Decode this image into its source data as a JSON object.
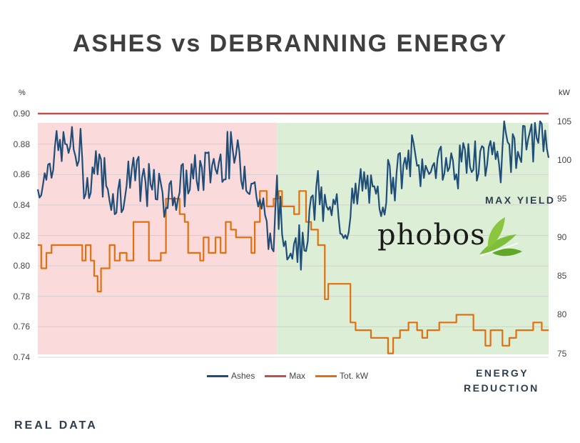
{
  "title": "ASHES vs DEBRANNING ENERGY",
  "y_left_unit": "%",
  "y_right_unit": "kW",
  "annotations": {
    "max_yield": "MAX YIELD",
    "energy_reduction_line1": "ENERGY",
    "energy_reduction_line2": "REDUCTION",
    "real_data": "REAL DATA"
  },
  "logo": {
    "text": "phobos",
    "icon": "green-leaves-icon"
  },
  "colors": {
    "ashes": "#1f4e79",
    "max": "#c0504d",
    "tot_kw": "#e07010",
    "region_before": "#fadada",
    "region_after": "#dcefd6"
  },
  "chart_data": {
    "type": "line",
    "title": "ASHES vs DEBRANNING ENERGY",
    "y_left": {
      "label": "%",
      "ticks": [
        "0.90",
        "0.88",
        "0.86",
        "0.84",
        "0.82",
        "0.80",
        "0.78",
        "0.76",
        "0.74"
      ],
      "range": [
        0.74,
        0.9
      ]
    },
    "y_right": {
      "label": "kW",
      "ticks": [
        "105",
        "100",
        "95",
        "90",
        "85",
        "80",
        "75"
      ],
      "range": [
        74.5,
        106
      ]
    },
    "x": {
      "count": 300
    },
    "legend": {
      "position": "bottom",
      "items": [
        "Ashes",
        "Max",
        "Tot. kW"
      ]
    },
    "regions": [
      {
        "from": 0,
        "to": 140,
        "color": "pink"
      },
      {
        "from": 140,
        "to": 300,
        "color": "green"
      }
    ],
    "series": [
      {
        "name": "Max",
        "axis": "left",
        "constant": 0.9
      },
      {
        "name": "Ashes",
        "axis": "left",
        "keypoints": [
          [
            0,
            0.85
          ],
          [
            10,
            0.875
          ],
          [
            20,
            0.88
          ],
          [
            28,
            0.856
          ],
          [
            35,
            0.868
          ],
          [
            45,
            0.845
          ],
          [
            55,
            0.86
          ],
          [
            65,
            0.852
          ],
          [
            75,
            0.846
          ],
          [
            85,
            0.852
          ],
          [
            95,
            0.862
          ],
          [
            105,
            0.868
          ],
          [
            115,
            0.872
          ],
          [
            125,
            0.858
          ],
          [
            132,
            0.835
          ],
          [
            137,
            0.812
          ],
          [
            140,
            0.838
          ],
          [
            145,
            0.815
          ],
          [
            150,
            0.82
          ],
          [
            155,
            0.812
          ],
          [
            160,
            0.838
          ],
          [
            165,
            0.848
          ],
          [
            170,
            0.832
          ],
          [
            175,
            0.835
          ],
          [
            180,
            0.828
          ],
          [
            185,
            0.84
          ],
          [
            190,
            0.852
          ],
          [
            195,
            0.848
          ],
          [
            200,
            0.838
          ],
          [
            205,
            0.858
          ],
          [
            210,
            0.866
          ],
          [
            215,
            0.862
          ],
          [
            220,
            0.872
          ],
          [
            225,
            0.862
          ],
          [
            235,
            0.868
          ],
          [
            245,
            0.866
          ],
          [
            255,
            0.87
          ],
          [
            265,
            0.872
          ],
          [
            275,
            0.877
          ],
          [
            285,
            0.88
          ],
          [
            292,
            0.885
          ],
          [
            299,
            0.884
          ]
        ],
        "noise_amplitude": 0.014
      },
      {
        "name": "Tot. kW",
        "axis": "right",
        "levels": [
          [
            0,
            89
          ],
          [
            2,
            86
          ],
          [
            5,
            88
          ],
          [
            8,
            89
          ],
          [
            15,
            89
          ],
          [
            26,
            87
          ],
          [
            28,
            89
          ],
          [
            31,
            87
          ],
          [
            33,
            85
          ],
          [
            35,
            83
          ],
          [
            37,
            86
          ],
          [
            40,
            86
          ],
          [
            42,
            89
          ],
          [
            45,
            87
          ],
          [
            48,
            88
          ],
          [
            52,
            87
          ],
          [
            56,
            92
          ],
          [
            62,
            92
          ],
          [
            65,
            87
          ],
          [
            72,
            88
          ],
          [
            75,
            95
          ],
          [
            80,
            95
          ],
          [
            83,
            93
          ],
          [
            86,
            92
          ],
          [
            88,
            88
          ],
          [
            93,
            88
          ],
          [
            95,
            87
          ],
          [
            97,
            90
          ],
          [
            100,
            88
          ],
          [
            104,
            90
          ],
          [
            107,
            88
          ],
          [
            110,
            92
          ],
          [
            113,
            91
          ],
          [
            116,
            90
          ],
          [
            120,
            90
          ],
          [
            125,
            88
          ],
          [
            127,
            92
          ],
          [
            130,
            96
          ],
          [
            134,
            94
          ],
          [
            138,
            95
          ],
          [
            141,
            96
          ],
          [
            143,
            94
          ],
          [
            145,
            94
          ],
          [
            150,
            93
          ],
          [
            153,
            96
          ],
          [
            157,
            92
          ],
          [
            160,
            91
          ],
          [
            164,
            89
          ],
          [
            168,
            82
          ],
          [
            170,
            84
          ],
          [
            175,
            84
          ],
          [
            180,
            84
          ],
          [
            183,
            79
          ],
          [
            186,
            78
          ],
          [
            190,
            78
          ],
          [
            195,
            77
          ],
          [
            200,
            77
          ],
          [
            205,
            75
          ],
          [
            208,
            77
          ],
          [
            212,
            78
          ],
          [
            217,
            79
          ],
          [
            222,
            78
          ],
          [
            225,
            77
          ],
          [
            228,
            78
          ],
          [
            235,
            79
          ],
          [
            240,
            79
          ],
          [
            245,
            80
          ],
          [
            250,
            80
          ],
          [
            255,
            78
          ],
          [
            262,
            76
          ],
          [
            265,
            78
          ],
          [
            272,
            76
          ],
          [
            276,
            77
          ],
          [
            280,
            78
          ],
          [
            287,
            78
          ],
          [
            290,
            79
          ],
          [
            292,
            79
          ],
          [
            295,
            78
          ],
          [
            299,
            78
          ]
        ]
      }
    ]
  }
}
